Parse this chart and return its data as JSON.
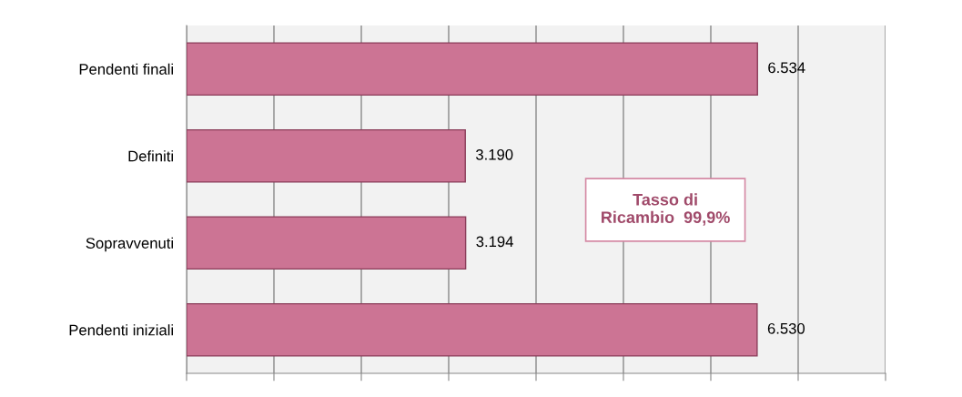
{
  "chart_data": {
    "type": "bar",
    "orientation": "horizontal",
    "categories": [
      "Pendenti finali",
      "Definiti",
      "Sopravvenuti",
      "Pendenti iniziali"
    ],
    "values": [
      6534,
      3190,
      3194,
      6530
    ],
    "value_labels": [
      "6.534",
      "3.190",
      "3.194",
      "6.530"
    ],
    "color": "#cc7494",
    "xlim": [
      0,
      8000
    ],
    "xticks": [
      {
        "value": 0,
        "label": null
      },
      {
        "value": 1000,
        "label": null
      },
      {
        "value": 2000,
        "label": null
      },
      {
        "value": 3000,
        "label": null
      },
      {
        "value": 4000,
        "label": null
      },
      {
        "value": 5000,
        "label": null
      },
      {
        "value": 6000,
        "label": null
      },
      {
        "value": 7000,
        "label": null
      },
      {
        "value": 8000,
        "label": null
      }
    ],
    "grid": "x",
    "annotations": [
      "Tasso di\nRicambio  99,9%"
    ]
  }
}
